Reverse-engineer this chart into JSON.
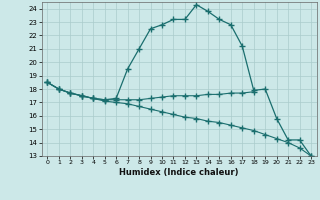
{
  "xlabel": "Humidex (Indice chaleur)",
  "ylabel": "",
  "bg_color": "#cce8e8",
  "grid_color": "#aacccc",
  "line_color": "#1a6e6e",
  "xlim": [
    -0.5,
    23.5
  ],
  "ylim": [
    13,
    24.5
  ],
  "xticks": [
    0,
    1,
    2,
    3,
    4,
    5,
    6,
    7,
    8,
    9,
    10,
    11,
    12,
    13,
    14,
    15,
    16,
    17,
    18,
    19,
    20,
    21,
    22,
    23
  ],
  "yticks": [
    13,
    14,
    15,
    16,
    17,
    18,
    19,
    20,
    21,
    22,
    23,
    24
  ],
  "line1_x": [
    0,
    1,
    2,
    3,
    4,
    5,
    6,
    7,
    8,
    9,
    10,
    11,
    12,
    13,
    14,
    15,
    16,
    17,
    18,
    19,
    20,
    21,
    22,
    23
  ],
  "line1_y": [
    18.5,
    18.0,
    17.7,
    17.5,
    17.3,
    17.2,
    17.3,
    19.5,
    21.0,
    22.5,
    22.8,
    23.2,
    23.2,
    24.3,
    23.8,
    23.2,
    22.8,
    21.2,
    17.9,
    18.0,
    15.8,
    14.2,
    14.2,
    13.0
  ],
  "line2_x": [
    0,
    1,
    2,
    3,
    4,
    5,
    6,
    7,
    8,
    9,
    10,
    11,
    12,
    13,
    14,
    15,
    16,
    17,
    18
  ],
  "line2_y": [
    18.5,
    18.0,
    17.7,
    17.5,
    17.3,
    17.2,
    17.2,
    17.2,
    17.2,
    17.3,
    17.4,
    17.5,
    17.5,
    17.5,
    17.6,
    17.6,
    17.7,
    17.7,
    17.8
  ],
  "line3_x": [
    0,
    1,
    2,
    3,
    4,
    5,
    6,
    7,
    8,
    9,
    10,
    11,
    12,
    13,
    14,
    15,
    16,
    17,
    18,
    19,
    20,
    21,
    22,
    23
  ],
  "line3_y": [
    18.5,
    18.0,
    17.7,
    17.5,
    17.3,
    17.1,
    17.0,
    16.9,
    16.7,
    16.5,
    16.3,
    16.1,
    15.9,
    15.8,
    15.6,
    15.5,
    15.3,
    15.1,
    14.9,
    14.6,
    14.3,
    14.0,
    13.6,
    13.0
  ]
}
